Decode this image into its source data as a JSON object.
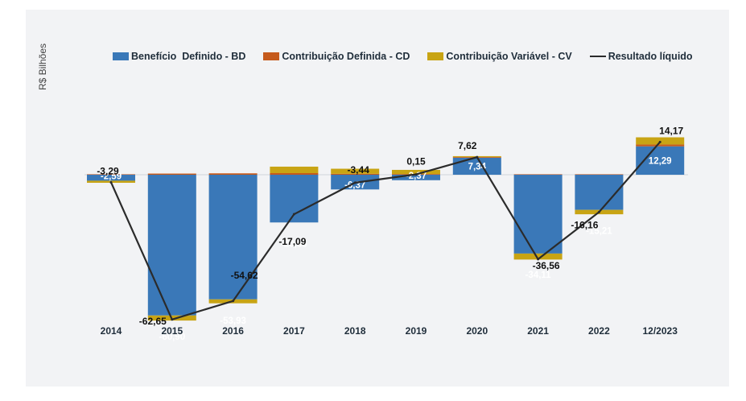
{
  "chart_data": {
    "type": "bar",
    "ylabel": "R$ Bilhões",
    "categories": [
      "2014",
      "2015",
      "2016",
      "2017",
      "2018",
      "2019",
      "2020",
      "2021",
      "2022",
      "12/2023"
    ],
    "series": [
      {
        "name": "Benefício  Definido - BD",
        "color": "#3a78b8",
        "values": [
          -2.59,
          -60.9,
          -53.93,
          -20.65,
          -6.37,
          -2.37,
          7.34,
          -34.11,
          -15.21,
          12.29
        ]
      },
      {
        "name": "Contribuição Definida - CD",
        "color": "#c55a1c",
        "values": [
          0.2,
          0.5,
          0.6,
          0.7,
          0.4,
          0.3,
          0.3,
          0.2,
          0.2,
          0.8
        ]
      },
      {
        "name": "Contribuição Variável - CV",
        "color": "#c8a414",
        "values": [
          -0.9,
          -2.2,
          -1.7,
          2.8,
          2.2,
          1.8,
          0.4,
          -2.6,
          -1.9,
          3.1
        ]
      }
    ],
    "line": {
      "name": "Resultado líquido",
      "color": "#2b2b2b",
      "values": [
        -3.29,
        -62.65,
        -54.62,
        -17.09,
        -3.44,
        0.15,
        7.62,
        -36.56,
        -16.16,
        14.17
      ],
      "labels": [
        "-3,29",
        "-62,65",
        "-54,62",
        "-17,09",
        "-3,44",
        "0,15",
        "7,62",
        "-36,56",
        "-16,16",
        "14,17"
      ]
    },
    "bar_labels": [
      "-2,59",
      "-60,90",
      "-53,93",
      "-20,65",
      "-6,37",
      "-2,37",
      "7,34",
      "-34,11",
      "-15,21",
      "12,29"
    ],
    "ylim": [
      -70,
      20
    ],
    "grid": false,
    "legend_position": "top"
  }
}
